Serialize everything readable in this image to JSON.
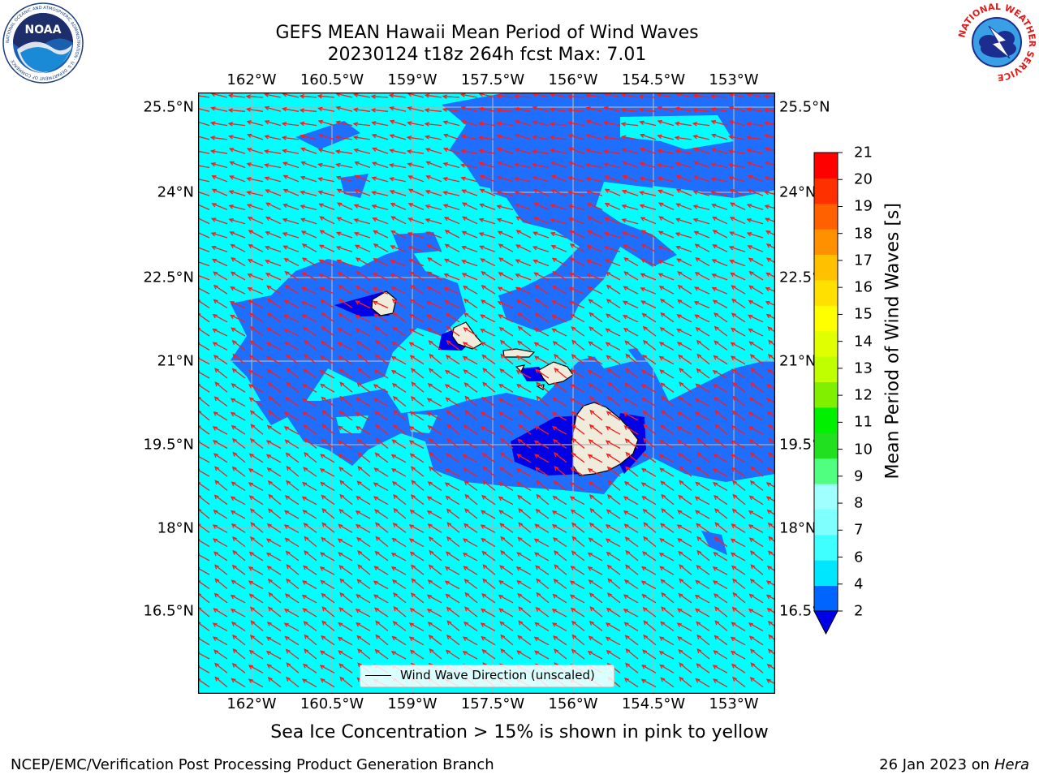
{
  "title": {
    "line1": "GEFS MEAN Hawaii Mean Period of Wind Waves",
    "line2": "20230124 t18z 264h fcst   Max: 7.01"
  },
  "map": {
    "lon_ticks": [
      "162°W",
      "160.5°W",
      "159°W",
      "157.5°W",
      "156°W",
      "154.5°W",
      "153°W"
    ],
    "lat_ticks": [
      "25.5°N",
      "24°N",
      "22.5°N",
      "21°N",
      "19.5°N",
      "18°N",
      "16.5°N"
    ],
    "colors": {
      "light": "#00ffff",
      "medium": "#1e6eff",
      "dark": "#0000e6",
      "land": "#efecdc",
      "arrow": "#ff1a1a",
      "grid": "#b0b0b0"
    },
    "legend_label": "Wind Wave Direction (unscaled)"
  },
  "colorbar": {
    "title": "Mean Period of Wind Waves [s]",
    "levels": [
      "2",
      "4",
      "6",
      "7",
      "8",
      "9",
      "10",
      "11",
      "12",
      "13",
      "14",
      "15",
      "16",
      "17",
      "18",
      "19",
      "20",
      "21"
    ],
    "colors": [
      "#0064ff",
      "#00e6ff",
      "#40ffff",
      "#80ffff",
      "#a0ffff",
      "#50ff80",
      "#20e020",
      "#00f000",
      "#80f000",
      "#c0ff00",
      "#e0ff00",
      "#ffff00",
      "#ffe000",
      "#ffc000",
      "#ff9000",
      "#ff6000",
      "#ff3000",
      "#ff0000"
    ],
    "extend_color": "#0000e6"
  },
  "note": "Sea Ice Concentration > 15% is shown in pink to yellow",
  "footer": {
    "left": "NCEP/EMC/Verification Post Processing Product Generation Branch",
    "right_date": "26 Jan 2023 on ",
    "right_machine": "Hera"
  },
  "logos": {
    "noaa_text": "NOAA",
    "noaa_ring": "NATIONAL OCEANIC AND ATMOSPHERIC ADMINISTRATION · U.S. DEPARTMENT OF COMMERCE",
    "nws_ring": "NATIONAL WEATHER SERVICE"
  }
}
